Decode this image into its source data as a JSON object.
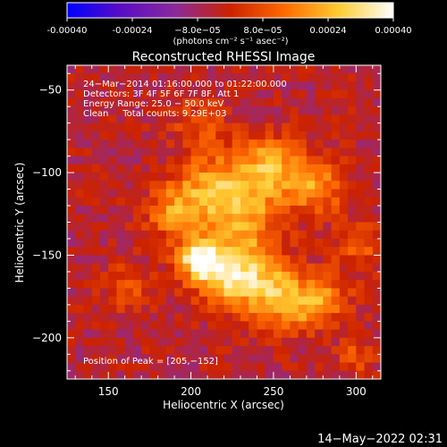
{
  "chart_data": {
    "type": "heatmap",
    "title": "Reconstructed RHESSI Image",
    "xlabel": "Heliocentric X (arcsec)",
    "ylabel": "Heliocentric Y (arcsec)",
    "xlim": [
      125,
      315
    ],
    "ylim": [
      -225,
      -35
    ],
    "x_ticks": [
      150,
      200,
      250,
      300
    ],
    "y_ticks": [
      -200,
      -150,
      -100,
      -50
    ],
    "colorbar": {
      "min": -0.0004,
      "max": 0.0004,
      "tick_values": [
        -0.0004,
        -0.00024,
        -8e-05,
        8e-05,
        0.00024,
        0.0004
      ],
      "tick_labels": [
        "-0.00040",
        "-0.00024",
        "−8.0e−05",
        "8.0e−05",
        "0.00024",
        "0.00040"
      ],
      "unit_label": "(photons cm⁻² s⁻¹ asec⁻²)",
      "colormap": [
        "#0000ff",
        "#5a0dc4",
        "#8b2a9a",
        "#cc2200",
        "#ff6a00",
        "#ffcc33",
        "#ffffff"
      ]
    },
    "annotations": [
      "24−Mar−2014 01:16:00.000 to 01:22:00.000",
      "Detectors: 3F 4F 5F 6F 7F 8F, Att 1",
      "Energy Range: 25.0 − 50.0 keV",
      "Clean     Total counts: 9.29E+03"
    ],
    "peak_label": "Position of Peak = [205,−152]",
    "peak": {
      "x": 205,
      "y": -152
    },
    "sources": [
      {
        "x": 205,
        "y": -152,
        "peak": 0.0004,
        "sigma": 9
      },
      {
        "x": 222,
        "y": -162,
        "peak": 0.0003,
        "sigma": 13
      },
      {
        "x": 245,
        "y": -168,
        "peak": 0.00024,
        "sigma": 14
      },
      {
        "x": 262,
        "y": -180,
        "peak": 0.00022,
        "sigma": 11
      },
      {
        "x": 282,
        "y": -176,
        "peak": 0.0002,
        "sigma": 10
      },
      {
        "x": 212,
        "y": -110,
        "peak": 0.00026,
        "sigma": 14
      },
      {
        "x": 246,
        "y": -98,
        "peak": 0.00028,
        "sigma": 14
      },
      {
        "x": 276,
        "y": -108,
        "peak": 0.00022,
        "sigma": 12
      },
      {
        "x": 188,
        "y": -124,
        "peak": 0.0002,
        "sigma": 11
      },
      {
        "x": 232,
        "y": -130,
        "peak": 0.00022,
        "sigma": 15
      },
      {
        "x": 302,
        "y": -145,
        "peak": 0.00014,
        "sigma": 10
      },
      {
        "x": 162,
        "y": -168,
        "peak": 0.00012,
        "sigma": 10
      },
      {
        "x": 205,
        "y": -72,
        "peak": 0.00012,
        "sigma": 11
      },
      {
        "x": 300,
        "y": -210,
        "peak": 0.00012,
        "sigma": 8
      }
    ]
  },
  "footer": {
    "timestamp": "14−May−2022 02:31"
  }
}
